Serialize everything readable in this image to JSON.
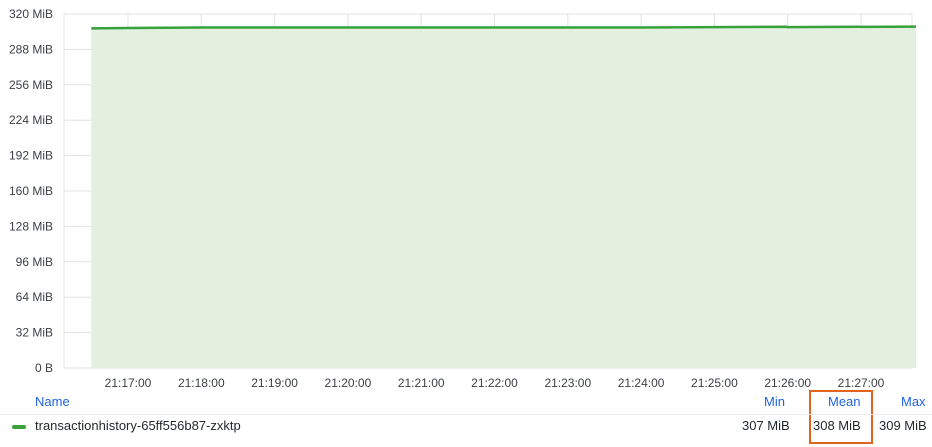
{
  "chart_data": {
    "type": "area",
    "y_ticks": [
      "0 B",
      "32 MiB",
      "64 MiB",
      "96 MiB",
      "128 MiB",
      "160 MiB",
      "192 MiB",
      "224 MiB",
      "256 MiB",
      "288 MiB",
      "320 MiB"
    ],
    "x_ticks": [
      "21:17:00",
      "21:18:00",
      "21:19:00",
      "21:20:00",
      "21:21:00",
      "21:22:00",
      "21:23:00",
      "21:24:00",
      "21:25:00",
      "21:26:00",
      "21:27:00"
    ],
    "ylim": [
      0,
      320
    ],
    "y_unit": "MiB",
    "grid": true,
    "series": [
      {
        "name": "transactionhistory-65ff556b87-zxktp",
        "color": "#37a13a",
        "x": [
          "21:16:30",
          "21:17:00",
          "21:18:00",
          "21:19:00",
          "21:20:00",
          "21:21:00",
          "21:22:00",
          "21:23:00",
          "21:24:00",
          "21:25:00",
          "21:25:59",
          "21:26:00",
          "21:26:59",
          "21:27:00",
          "21:27:45"
        ],
        "values": [
          307.0,
          307.3,
          307.8,
          307.8,
          307.8,
          307.8,
          307.8,
          307.8,
          307.8,
          308.2,
          308.4,
          308.2,
          308.5,
          308.3,
          308.6
        ]
      }
    ]
  },
  "legend": {
    "headers": {
      "name": "Name",
      "min": "Min",
      "mean": "Mean",
      "max": "Max"
    },
    "rows": [
      {
        "name": "transactionhistory-65ff556b87-zxktp",
        "min": "307 MiB",
        "mean": "308 MiB",
        "max": "309 MiB"
      }
    ]
  },
  "colors": {
    "series": "#37a13a",
    "fill": "#e3f0e0",
    "grid": "#e3e3e3",
    "header": "#1f62e0",
    "highlight": "#e0641e"
  }
}
